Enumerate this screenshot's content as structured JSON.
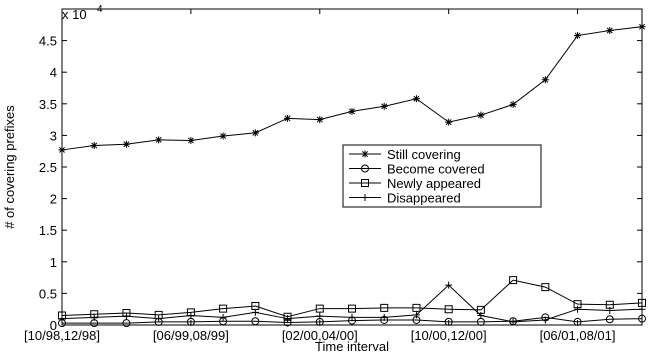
{
  "chart_data": {
    "type": "line",
    "x_label": "Time interval",
    "y_label": "# of covering prefixes",
    "y_scale_label": {
      "base": "x 10",
      "exponent": "4"
    },
    "x": [
      1,
      2,
      3,
      4,
      5,
      6,
      7,
      8,
      9,
      10,
      11,
      12,
      13,
      14,
      15,
      16,
      17,
      18,
      19
    ],
    "xlim": [
      1,
      19
    ],
    "xticks": [
      {
        "value": 1,
        "label": "[10/98,12/98]"
      },
      {
        "value": 5,
        "label": "[06/99,08/99]"
      },
      {
        "value": 9,
        "label": "[02/00,04/00]"
      },
      {
        "value": 13,
        "label": "[10/00,12/00]"
      },
      {
        "value": 17,
        "label": "[06/01,08/01]"
      }
    ],
    "ylim": [
      0,
      5
    ],
    "yticks": [
      0,
      0.5,
      1,
      1.5,
      2,
      2.5,
      3,
      3.5,
      4,
      4.5
    ],
    "grid": false,
    "legend": "center",
    "series": [
      {
        "name": "Still covering",
        "color": "#000000",
        "marker": "asterisk",
        "values": [
          2.77,
          2.84,
          2.86,
          2.93,
          2.92,
          2.99,
          3.04,
          3.27,
          3.25,
          3.38,
          3.46,
          3.58,
          3.21,
          3.32,
          3.49,
          3.88,
          4.58,
          4.66,
          4.72
        ]
      },
      {
        "name": "Become covered",
        "color": "#000000",
        "marker": "circle",
        "values": [
          0.03,
          0.03,
          0.03,
          0.05,
          0.05,
          0.06,
          0.06,
          0.04,
          0.05,
          0.07,
          0.08,
          0.08,
          0.05,
          0.05,
          0.06,
          0.12,
          0.05,
          0.09,
          0.1
        ]
      },
      {
        "name": "Newly appeared",
        "color": "#000000",
        "marker": "square",
        "values": [
          0.15,
          0.17,
          0.19,
          0.16,
          0.2,
          0.26,
          0.3,
          0.13,
          0.26,
          0.26,
          0.27,
          0.27,
          0.25,
          0.24,
          0.71,
          0.6,
          0.33,
          0.32,
          0.35
        ]
      },
      {
        "name": "Disappeared",
        "color": "#000000",
        "marker": "plus",
        "values": [
          0.1,
          0.12,
          0.14,
          0.1,
          0.15,
          0.12,
          0.2,
          0.1,
          0.14,
          0.12,
          0.12,
          0.16,
          0.63,
          0.15,
          0.05,
          0.08,
          0.25,
          0.23,
          0.25
        ]
      }
    ]
  }
}
